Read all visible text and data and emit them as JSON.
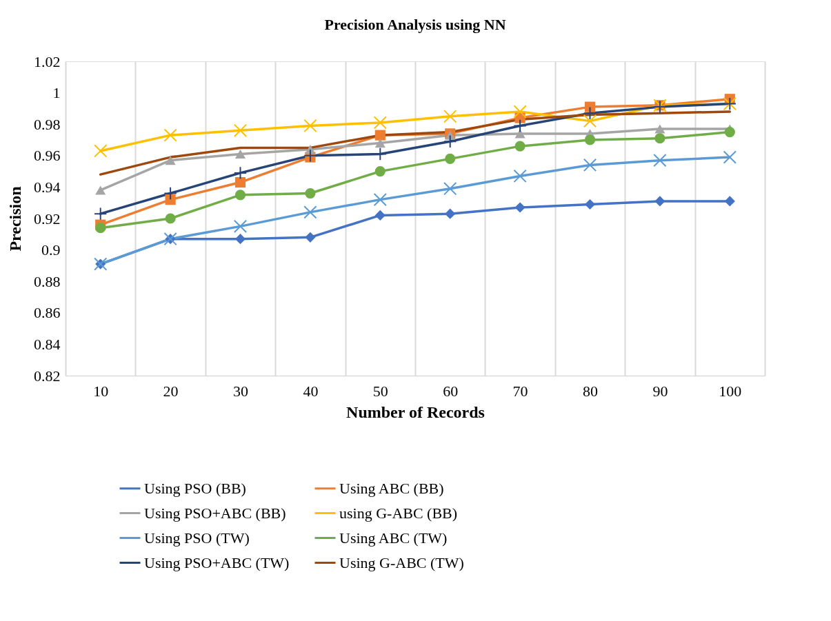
{
  "chart_data": {
    "type": "line",
    "title": "Precision Analysis using NN",
    "xlabel": "Number of Records",
    "ylabel": "Precision",
    "categories": [
      "10",
      "20",
      "30",
      "40",
      "50",
      "60",
      "70",
      "80",
      "90",
      "100"
    ],
    "series": [
      {
        "name": "Using PSO (BB)",
        "color": "#4472c4",
        "marker": "diamond",
        "values": [
          0.891,
          0.907,
          0.907,
          0.908,
          0.922,
          0.923,
          0.927,
          0.929,
          0.931,
          0.931
        ]
      },
      {
        "name": "Using ABC (BB)",
        "color": "#ed7d31",
        "marker": "square",
        "values": [
          0.916,
          0.932,
          0.943,
          0.959,
          0.973,
          0.974,
          0.984,
          0.991,
          0.992,
          0.996
        ]
      },
      {
        "name": "Using PSO+ABC (BB)",
        "color": "#a5a5a5",
        "marker": "triangle",
        "values": [
          0.938,
          0.957,
          0.961,
          0.964,
          0.968,
          0.973,
          0.974,
          0.974,
          0.977,
          0.977
        ]
      },
      {
        "name": "using G-ABC (BB)",
        "color": "#ffc000",
        "marker": "cross",
        "values": [
          0.963,
          0.973,
          0.976,
          0.979,
          0.981,
          0.985,
          0.988,
          0.982,
          0.992,
          0.993
        ]
      },
      {
        "name": "Using PSO (TW)",
        "color": "#5b9bd5",
        "marker": "cross",
        "values": [
          0.891,
          0.907,
          0.915,
          0.924,
          0.932,
          0.939,
          0.947,
          0.954,
          0.957,
          0.959
        ]
      },
      {
        "name": "Using ABC (TW)",
        "color": "#70ad47",
        "marker": "circle",
        "values": [
          0.914,
          0.92,
          0.935,
          0.936,
          0.95,
          0.958,
          0.966,
          0.97,
          0.971,
          0.975
        ]
      },
      {
        "name": "Using PSO+ABC (TW)",
        "color": "#264478",
        "marker": "plus",
        "values": [
          0.923,
          0.936,
          0.949,
          0.96,
          0.961,
          0.969,
          0.979,
          0.987,
          0.991,
          0.993
        ]
      },
      {
        "name": "Using G-ABC (TW)",
        "color": "#9e480e",
        "marker": "none",
        "values": [
          0.948,
          0.959,
          0.965,
          0.965,
          0.973,
          0.975,
          0.983,
          0.986,
          0.987,
          0.988
        ]
      }
    ],
    "ylim": [
      0.82,
      1.02
    ],
    "yticks": [
      0.82,
      0.84,
      0.86,
      0.88,
      0.9,
      0.92,
      0.94,
      0.96,
      0.98,
      1,
      1.02
    ],
    "grid": "x",
    "legend": "bottom"
  }
}
